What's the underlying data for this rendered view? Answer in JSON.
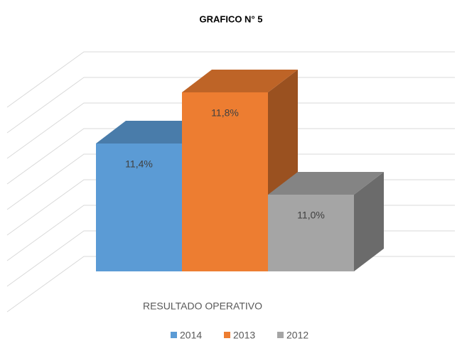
{
  "chart_data": {
    "type": "bar3d",
    "title": "GRAFICO N° 5",
    "categories": [
      "RESULTADO OPERATIVO"
    ],
    "series": [
      {
        "name": "2014",
        "color": "#5b9bd5",
        "values": [
          11.4
        ],
        "value_labels": [
          "11,4%"
        ]
      },
      {
        "name": "2013",
        "color": "#ed7d31",
        "values": [
          11.8
        ],
        "value_labels": [
          "11,8%"
        ]
      },
      {
        "name": "2012",
        "color": "#a5a5a5",
        "values": [
          11.0
        ],
        "value_labels": [
          "11,0%"
        ]
      }
    ],
    "ylim": [
      10.4,
      12.0
    ],
    "yticks": [
      10.4,
      10.6,
      10.8,
      11.0,
      11.2,
      11.4,
      11.6,
      11.8,
      12.0
    ],
    "grid": true,
    "legend": "bottom"
  }
}
